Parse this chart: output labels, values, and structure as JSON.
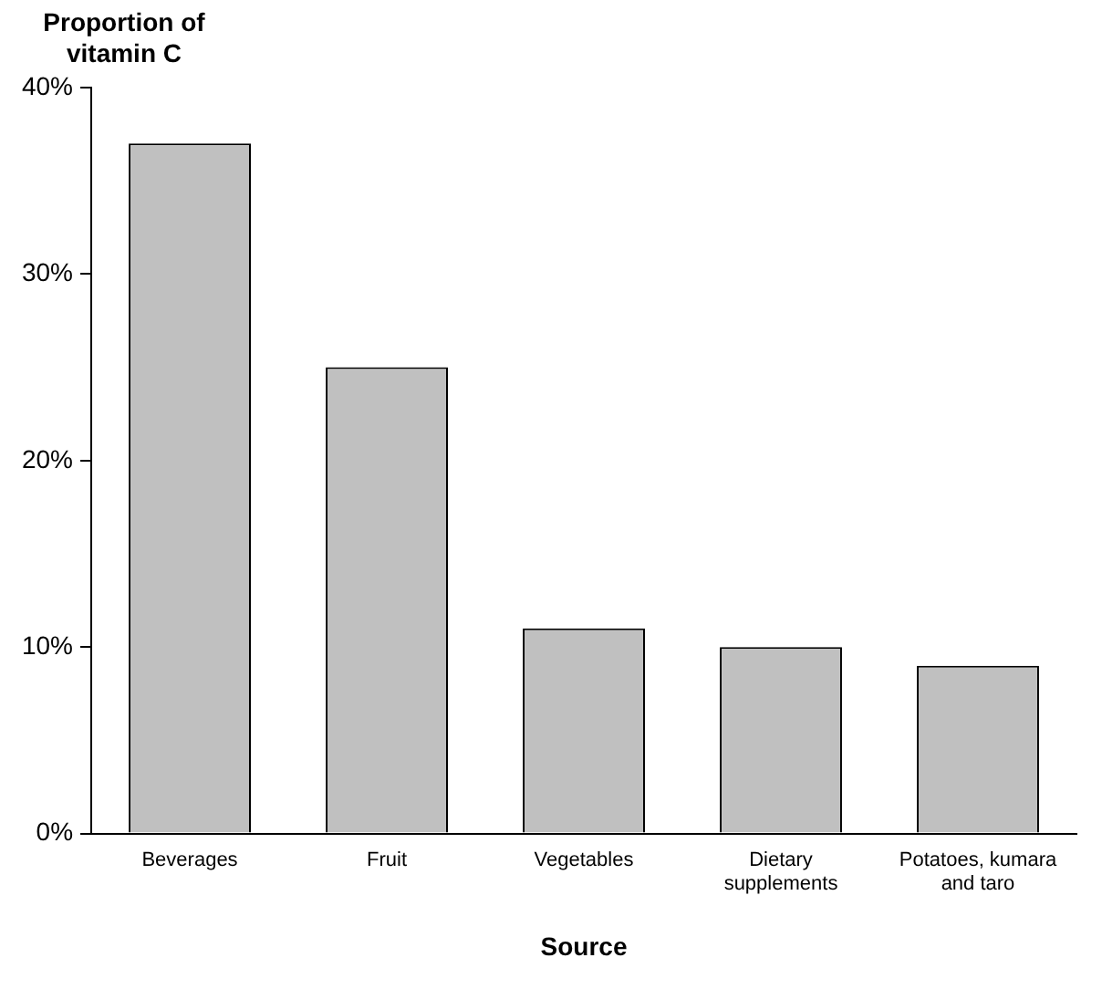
{
  "chart_data": {
    "type": "bar",
    "ylabel": "Proportion of vitamin C",
    "xlabel": "Source",
    "categories": [
      "Beverages",
      "Fruit",
      "Vegetables",
      "Dietary supplements",
      "Potatoes, kumara and taro"
    ],
    "values": [
      37,
      25,
      11,
      10,
      9
    ],
    "color": "#c0c0c0",
    "ylim": [
      0,
      40
    ],
    "yticks": [
      {
        "value": 0,
        "label": "0%"
      },
      {
        "value": 10,
        "label": "10%"
      },
      {
        "value": 20,
        "label": "20%"
      },
      {
        "value": 30,
        "label": "30%"
      },
      {
        "value": 40,
        "label": "40%"
      }
    ],
    "grid": false,
    "legend": false
  }
}
